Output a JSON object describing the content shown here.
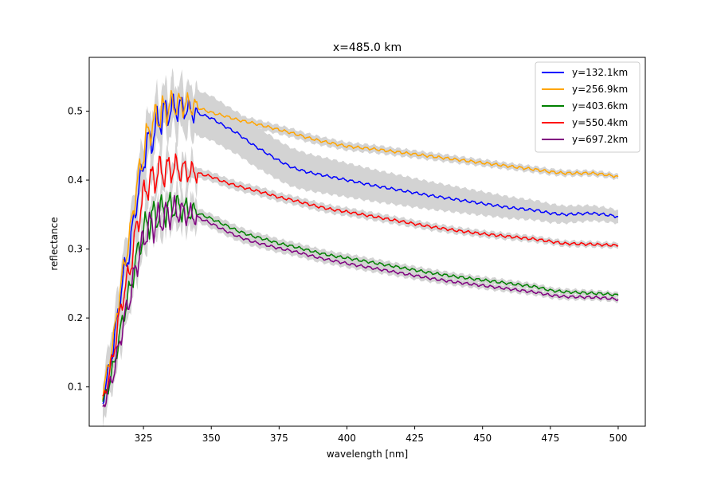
{
  "chart_data": {
    "type": "line",
    "title": "x=485.0 km",
    "xlabel": "wavelength [nm]",
    "ylabel": "reflectance",
    "xlim": [
      305,
      510
    ],
    "ylim": [
      0.043,
      0.578
    ],
    "xticks": [
      325,
      350,
      375,
      400,
      425,
      450,
      475,
      500
    ],
    "yticks": [
      0.1,
      0.2,
      0.3,
      0.4,
      0.5
    ],
    "grid": false,
    "legend_position": "top-right",
    "band_color": "#d3d3d3",
    "series": [
      {
        "name": "y=132.1km",
        "color": "#0000ff",
        "band_max": 0.03,
        "points": [
          [
            310,
            0.08
          ],
          [
            312,
            0.12
          ],
          [
            314,
            0.16
          ],
          [
            316,
            0.22
          ],
          [
            318,
            0.27
          ],
          [
            320,
            0.3
          ],
          [
            322,
            0.36
          ],
          [
            324,
            0.4
          ],
          [
            326,
            0.45
          ],
          [
            328,
            0.46
          ],
          [
            330,
            0.48
          ],
          [
            332,
            0.495
          ],
          [
            334,
            0.5
          ],
          [
            336,
            0.505
          ],
          [
            338,
            0.505
          ],
          [
            340,
            0.505
          ],
          [
            342,
            0.5
          ],
          [
            345,
            0.497
          ],
          [
            350,
            0.49
          ],
          [
            355,
            0.478
          ],
          [
            360,
            0.467
          ],
          [
            365,
            0.452
          ],
          [
            370,
            0.44
          ],
          [
            375,
            0.428
          ],
          [
            380,
            0.418
          ],
          [
            385,
            0.412
          ],
          [
            390,
            0.408
          ],
          [
            395,
            0.404
          ],
          [
            400,
            0.4
          ],
          [
            410,
            0.392
          ],
          [
            420,
            0.385
          ],
          [
            430,
            0.378
          ],
          [
            440,
            0.372
          ],
          [
            450,
            0.366
          ],
          [
            460,
            0.36
          ],
          [
            470,
            0.356
          ],
          [
            475,
            0.352
          ],
          [
            480,
            0.35
          ],
          [
            490,
            0.352
          ],
          [
            495,
            0.35
          ],
          [
            500,
            0.347
          ]
        ]
      },
      {
        "name": "y=256.9km",
        "color": "#ffa500",
        "band_max": 0.004,
        "points": [
          [
            310,
            0.09
          ],
          [
            312,
            0.13
          ],
          [
            314,
            0.17
          ],
          [
            316,
            0.23
          ],
          [
            318,
            0.28
          ],
          [
            320,
            0.32
          ],
          [
            322,
            0.38
          ],
          [
            324,
            0.42
          ],
          [
            326,
            0.46
          ],
          [
            328,
            0.48
          ],
          [
            330,
            0.49
          ],
          [
            332,
            0.5
          ],
          [
            334,
            0.505
          ],
          [
            336,
            0.51
          ],
          [
            338,
            0.51
          ],
          [
            340,
            0.51
          ],
          [
            342,
            0.508
          ],
          [
            345,
            0.505
          ],
          [
            350,
            0.498
          ],
          [
            355,
            0.493
          ],
          [
            360,
            0.487
          ],
          [
            365,
            0.483
          ],
          [
            370,
            0.478
          ],
          [
            375,
            0.473
          ],
          [
            380,
            0.468
          ],
          [
            385,
            0.462
          ],
          [
            390,
            0.457
          ],
          [
            395,
            0.453
          ],
          [
            400,
            0.449
          ],
          [
            410,
            0.445
          ],
          [
            420,
            0.44
          ],
          [
            430,
            0.435
          ],
          [
            440,
            0.43
          ],
          [
            450,
            0.425
          ],
          [
            460,
            0.42
          ],
          [
            470,
            0.415
          ],
          [
            475,
            0.412
          ],
          [
            480,
            0.41
          ],
          [
            490,
            0.41
          ],
          [
            495,
            0.408
          ],
          [
            500,
            0.405
          ]
        ]
      },
      {
        "name": "y=403.6km",
        "color": "#008000",
        "band_max": 0.004,
        "points": [
          [
            310,
            0.075
          ],
          [
            312,
            0.1
          ],
          [
            314,
            0.13
          ],
          [
            316,
            0.17
          ],
          [
            318,
            0.21
          ],
          [
            320,
            0.24
          ],
          [
            322,
            0.28
          ],
          [
            324,
            0.31
          ],
          [
            326,
            0.335
          ],
          [
            328,
            0.345
          ],
          [
            330,
            0.35
          ],
          [
            332,
            0.355
          ],
          [
            334,
            0.36
          ],
          [
            336,
            0.362
          ],
          [
            338,
            0.36
          ],
          [
            340,
            0.358
          ],
          [
            342,
            0.355
          ],
          [
            345,
            0.352
          ],
          [
            350,
            0.344
          ],
          [
            355,
            0.335
          ],
          [
            360,
            0.326
          ],
          [
            365,
            0.319
          ],
          [
            370,
            0.314
          ],
          [
            375,
            0.308
          ],
          [
            380,
            0.304
          ],
          [
            385,
            0.299
          ],
          [
            390,
            0.294
          ],
          [
            395,
            0.29
          ],
          [
            400,
            0.287
          ],
          [
            410,
            0.28
          ],
          [
            420,
            0.273
          ],
          [
            430,
            0.266
          ],
          [
            440,
            0.26
          ],
          [
            450,
            0.255
          ],
          [
            460,
            0.25
          ],
          [
            470,
            0.245
          ],
          [
            475,
            0.24
          ],
          [
            480,
            0.238
          ],
          [
            490,
            0.236
          ],
          [
            495,
            0.235
          ],
          [
            500,
            0.233
          ]
        ]
      },
      {
        "name": "y=550.4km",
        "color": "#ff0000",
        "band_max": 0.004,
        "points": [
          [
            310,
            0.08
          ],
          [
            312,
            0.11
          ],
          [
            314,
            0.15
          ],
          [
            316,
            0.2
          ],
          [
            318,
            0.24
          ],
          [
            320,
            0.27
          ],
          [
            322,
            0.32
          ],
          [
            324,
            0.36
          ],
          [
            326,
            0.39
          ],
          [
            328,
            0.4
          ],
          [
            330,
            0.41
          ],
          [
            332,
            0.412
          ],
          [
            334,
            0.415
          ],
          [
            336,
            0.418
          ],
          [
            338,
            0.416
          ],
          [
            340,
            0.414
          ],
          [
            342,
            0.412
          ],
          [
            345,
            0.41
          ],
          [
            350,
            0.405
          ],
          [
            355,
            0.397
          ],
          [
            360,
            0.391
          ],
          [
            365,
            0.386
          ],
          [
            370,
            0.381
          ],
          [
            375,
            0.375
          ],
          [
            380,
            0.371
          ],
          [
            385,
            0.366
          ],
          [
            390,
            0.361
          ],
          [
            395,
            0.357
          ],
          [
            400,
            0.354
          ],
          [
            410,
            0.347
          ],
          [
            420,
            0.34
          ],
          [
            430,
            0.333
          ],
          [
            440,
            0.327
          ],
          [
            450,
            0.322
          ],
          [
            460,
            0.318
          ],
          [
            470,
            0.314
          ],
          [
            475,
            0.311
          ],
          [
            480,
            0.308
          ],
          [
            490,
            0.307
          ],
          [
            495,
            0.306
          ],
          [
            500,
            0.305
          ]
        ]
      },
      {
        "name": "y=697.2km",
        "color": "#800080",
        "band_max": 0.004,
        "points": [
          [
            310,
            0.07
          ],
          [
            312,
            0.095
          ],
          [
            314,
            0.12
          ],
          [
            316,
            0.16
          ],
          [
            318,
            0.2
          ],
          [
            320,
            0.23
          ],
          [
            322,
            0.27
          ],
          [
            324,
            0.3
          ],
          [
            326,
            0.325
          ],
          [
            328,
            0.335
          ],
          [
            330,
            0.34
          ],
          [
            332,
            0.345
          ],
          [
            334,
            0.35
          ],
          [
            336,
            0.355
          ],
          [
            338,
            0.355
          ],
          [
            340,
            0.352
          ],
          [
            342,
            0.35
          ],
          [
            345,
            0.346
          ],
          [
            350,
            0.337
          ],
          [
            355,
            0.327
          ],
          [
            360,
            0.318
          ],
          [
            365,
            0.311
          ],
          [
            370,
            0.306
          ],
          [
            375,
            0.301
          ],
          [
            380,
            0.297
          ],
          [
            385,
            0.292
          ],
          [
            390,
            0.287
          ],
          [
            395,
            0.283
          ],
          [
            400,
            0.279
          ],
          [
            410,
            0.272
          ],
          [
            420,
            0.265
          ],
          [
            430,
            0.258
          ],
          [
            440,
            0.252
          ],
          [
            450,
            0.247
          ],
          [
            460,
            0.242
          ],
          [
            470,
            0.237
          ],
          [
            475,
            0.233
          ],
          [
            480,
            0.231
          ],
          [
            490,
            0.23
          ],
          [
            495,
            0.229
          ],
          [
            500,
            0.227
          ]
        ]
      }
    ]
  }
}
